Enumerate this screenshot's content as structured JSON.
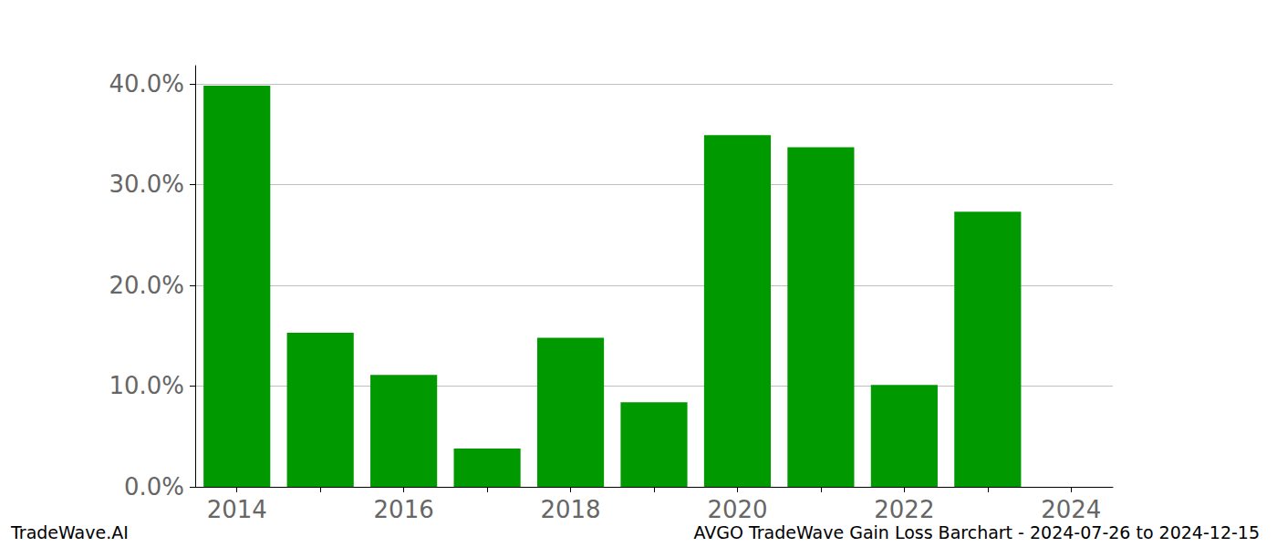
{
  "chart_data": {
    "type": "bar",
    "title": "AVGO TradeWave Gain Loss Barchart - 2024-07-26 to 2024-12-15",
    "subtitle": "TradeWave.AI",
    "categories": [
      "2014",
      null,
      "2016",
      null,
      "2018",
      null,
      "2020",
      null,
      "2022",
      null,
      "2024"
    ],
    "values": [
      39.8,
      15.3,
      11.1,
      3.8,
      14.8,
      8.4,
      34.9,
      33.7,
      10.1,
      27.3,
      null
    ],
    "color": "#009900",
    "ylim": [
      0,
      41.8
    ],
    "yticks": [
      {
        "value": 0,
        "label": "0.0%"
      },
      {
        "value": 10,
        "label": "10.0%"
      },
      {
        "value": 20,
        "label": "20.0%"
      },
      {
        "value": 30,
        "label": "30.0%"
      },
      {
        "value": 40,
        "label": "40.0%"
      }
    ],
    "grid": true
  }
}
